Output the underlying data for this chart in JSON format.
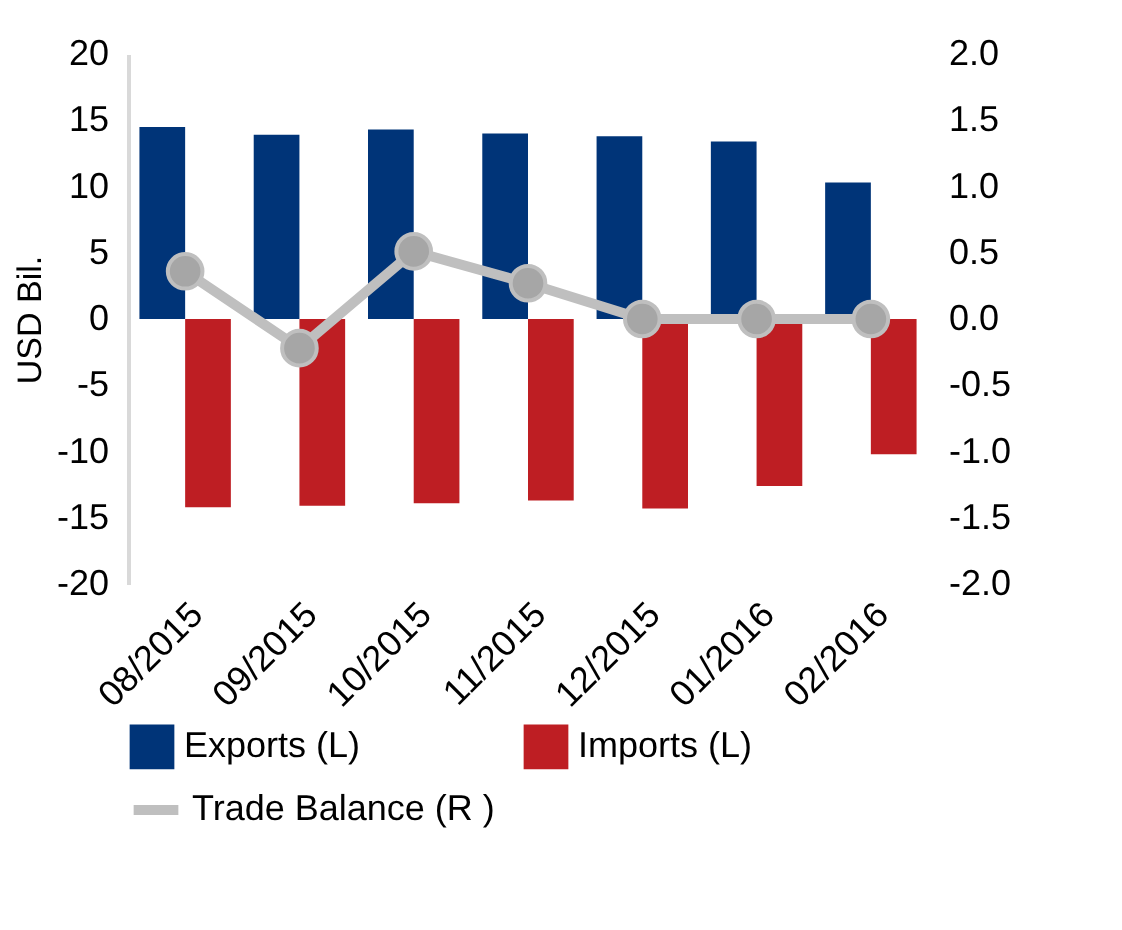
{
  "chart_data": {
    "type": "bar",
    "ylabel": "USD Bil.",
    "categories": [
      "08/2015",
      "09/2015",
      "10/2015",
      "11/2015",
      "12/2015",
      "01/2016",
      "02/2016"
    ],
    "series": [
      {
        "name": "Exports (L)",
        "color": "#003478",
        "values": [
          14.5,
          13.9,
          14.3,
          14.0,
          13.8,
          13.4,
          10.3
        ]
      },
      {
        "name": "Imports (L)",
        "color": "#be1e23",
        "values": [
          -14.2,
          -14.1,
          -13.9,
          -13.7,
          -14.3,
          -12.6,
          -10.2
        ]
      },
      {
        "name": "Trade Balance (R )",
        "type": "line",
        "axis": "y2",
        "color": "#bfbfbf",
        "marker": "circle",
        "values": [
          0.36,
          -0.22,
          0.51,
          0.27,
          0,
          0,
          0
        ]
      }
    ],
    "ylim": [
      -20,
      20
    ],
    "yticks": [
      -20,
      -15,
      -10,
      -5,
      0,
      5,
      10,
      15,
      20
    ],
    "y2lim": [
      -2.0,
      2.0
    ],
    "y2ticks": [
      {
        "value": -2,
        "label": "-2.0"
      },
      {
        "value": -1.5,
        "label": "-1.5"
      },
      {
        "value": -1,
        "label": "-1.0"
      },
      {
        "value": -0.5,
        "label": "-0.5"
      },
      {
        "value": 0,
        "label": "0.0"
      },
      {
        "value": 0.5,
        "label": "0.5"
      },
      {
        "value": 1,
        "label": "1.0"
      },
      {
        "value": 1.5,
        "label": "1.5"
      },
      {
        "value": 2,
        "label": "2.0"
      }
    ],
    "grid": false,
    "legend": "bottom"
  }
}
